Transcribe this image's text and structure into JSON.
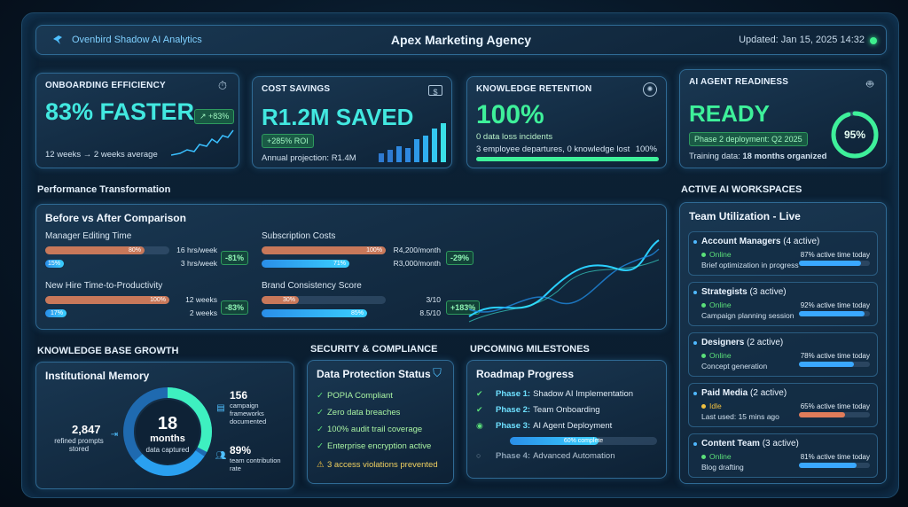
{
  "header": {
    "brand": "Ovenbird Shadow AI Analytics",
    "title": "Apex Marketing Agency",
    "updated": "Updated: Jan 15, 2025 14:32"
  },
  "kpis": {
    "onboarding": {
      "title": "ONBOARDING EFFICIENCY",
      "value": "83% FASTER",
      "chip": "↗ +83%",
      "note": "12 weeks → 2 weeks average",
      "icon": "stopwatch-icon"
    },
    "cost": {
      "title": "COST SAVINGS",
      "value": "R1.2M SAVED",
      "chip": "+285% ROI",
      "note": "Annual projection: R1.4M",
      "icon": "money-icon"
    },
    "knowledge": {
      "title": "KNOWLEDGE RETENTION",
      "value": "100%",
      "sub": "0 data loss incidents",
      "note": "3 employee departures, 0 knowledge lost",
      "pct_label": "100%",
      "fill": 1.0,
      "icon": "brain-icon"
    },
    "ai": {
      "title": "AI AGENT READINESS",
      "value": "READY",
      "chip": "Phase 2 deployment: Q2 2025",
      "note_prefix": "Training data: ",
      "note_bold": "18 months organized",
      "ring": "95%",
      "ring_value": 0.95,
      "icon": "robot-icon"
    }
  },
  "performance": {
    "section": "Performance Transformation",
    "panel": "Before vs After Comparison",
    "metrics": [
      {
        "label": "Manager Editing Time",
        "before_pct": "80%",
        "before_text": "16 hrs/week",
        "before_val": 0.8,
        "after_pct": "15%",
        "after_text": "3 hrs/week",
        "after_val": 0.15,
        "delta": "-81%"
      },
      {
        "label": "Subscription Costs",
        "before_pct": "100%",
        "before_text": "R4,200/month",
        "before_val": 1.0,
        "after_pct": "71%",
        "after_text": "R3,000/month",
        "after_val": 0.71,
        "delta": "-29%"
      },
      {
        "label": "New Hire Time-to-Productivity",
        "before_pct": "100%",
        "before_text": "12 weeks",
        "before_val": 1.0,
        "after_pct": "17%",
        "after_text": "2 weeks",
        "after_val": 0.17,
        "delta": "-83%"
      },
      {
        "label": "Brand Consistency Score",
        "before_pct": "30%",
        "before_text": "3/10",
        "before_val": 0.3,
        "after_pct": "85%",
        "after_text": "8.5/10",
        "after_val": 0.85,
        "delta": "+183%"
      }
    ]
  },
  "knowledge_base": {
    "section": "KNOWLEDGE BASE GROWTH",
    "panel": "Institutional Memory",
    "center_big": "18",
    "center_unit": "months",
    "center_sub": "data captured",
    "left_num": "2,847",
    "left_text": "refined prompts stored",
    "right_top_num": "156",
    "right_top_text": "campaign frameworks documented",
    "right_bot_num": "89%",
    "right_bot_text": "team contribution rate"
  },
  "security": {
    "section": "SECURITY & COMPLIANCE",
    "panel": "Data Protection Status",
    "items": [
      "POPIA Compliant",
      "Zero data breaches",
      "100% audit trail coverage",
      "Enterprise encryption active"
    ],
    "warning": "3 access violations prevented"
  },
  "milestones": {
    "section": "UPCOMING MILESTONES",
    "panel": "Roadmap Progress",
    "phases": [
      {
        "label": "Phase 1:",
        "name": "Shadow AI Implementation"
      },
      {
        "label": "Phase 2:",
        "name": "Team Onboarding"
      },
      {
        "label": "Phase 3:",
        "name": "AI Agent Deployment"
      },
      {
        "label": "Phase 4:",
        "name": "Advanced Automation"
      }
    ],
    "progress_label": "60% complete",
    "progress": 0.6
  },
  "workspaces": {
    "section": "ACTIVE AI WORKSPACES",
    "panel": "Team Utilization - Live",
    "teams": [
      {
        "name": "Account Managers",
        "count": "(4 active)",
        "status": "Online",
        "activity": "Brief optimization in progress",
        "pct": "87% active time today",
        "value": 0.87,
        "color": "#3aa8ff"
      },
      {
        "name": "Strategists",
        "count": "(3 active)",
        "status": "Online",
        "activity": "Campaign planning session",
        "pct": "92% active time today",
        "value": 0.92,
        "color": "#3aa8ff"
      },
      {
        "name": "Designers",
        "count": "(2 active)",
        "status": "Online",
        "activity": "Concept generation",
        "pct": "78% active time today",
        "value": 0.78,
        "color": "#3aa8ff"
      },
      {
        "name": "Paid Media",
        "count": "(2 active)",
        "status": "Idle",
        "activity": "Last used: 15 mins ago",
        "pct": "65% active time today",
        "value": 0.65,
        "color": "#e07c5a"
      },
      {
        "name": "Content Team",
        "count": "(3 active)",
        "status": "Online",
        "activity": "Blog drafting",
        "pct": "81% active time today",
        "value": 0.81,
        "color": "#3aa8ff"
      }
    ]
  },
  "colors": {
    "accent": "#3ef0b0",
    "blue": "#3aa8ff",
    "before_bar": "#c8785a",
    "online": "#5be07a",
    "idle": "#f0c040"
  }
}
